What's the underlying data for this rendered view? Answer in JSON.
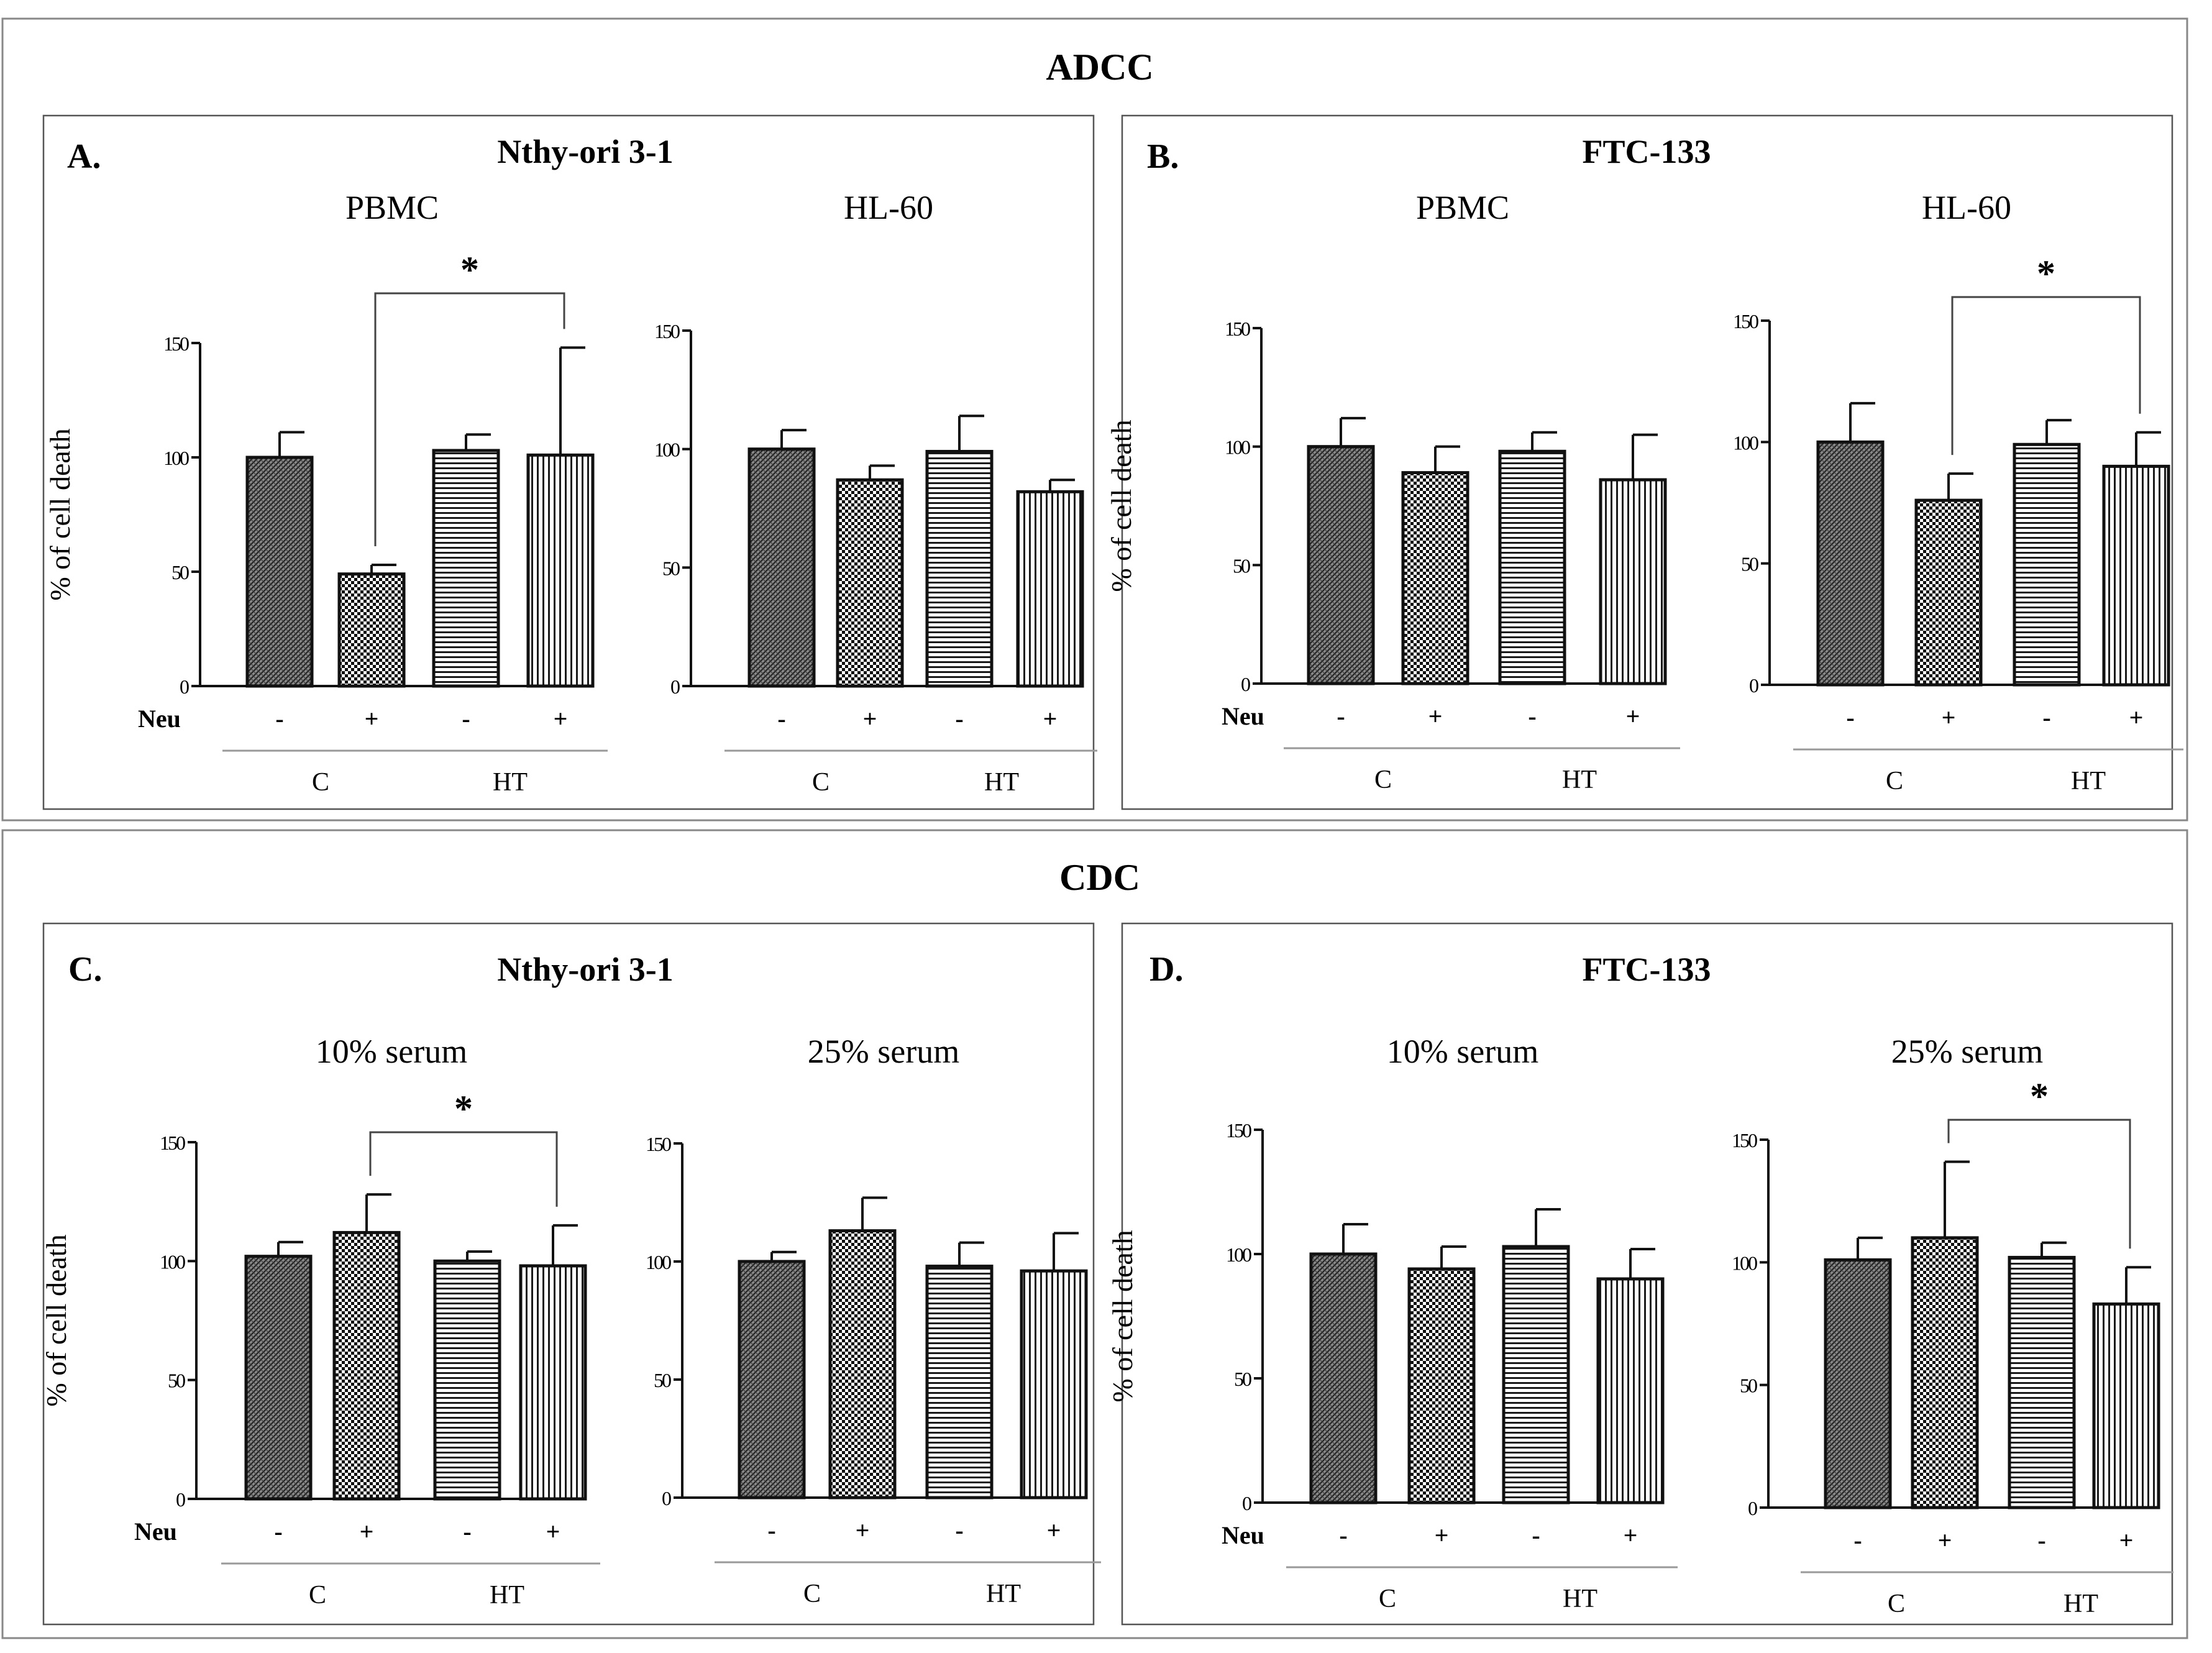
{
  "figure": {
    "sections": [
      {
        "id": "adcc",
        "title": "ADCC"
      },
      {
        "id": "cdc",
        "title": "CDC"
      }
    ],
    "panels": [
      {
        "id": "A",
        "label": "A.",
        "cell_line": "Nthy-ori 3-1"
      },
      {
        "id": "B",
        "label": "B.",
        "cell_line": "FTC-133"
      },
      {
        "id": "C",
        "label": "C.",
        "cell_line": "Nthy-ori 3-1"
      },
      {
        "id": "D",
        "label": "D.",
        "cell_line": "FTC-133"
      }
    ]
  },
  "chart_data": [
    {
      "type": "bar",
      "panel": "A",
      "title": "PBMC",
      "ylabel": "% of cell death",
      "ylim": [
        0,
        150
      ],
      "yticks": [
        0,
        50,
        100,
        150
      ],
      "neu_label": "Neu",
      "categories": [
        "-",
        "+",
        "-",
        "+"
      ],
      "groups": [
        "C",
        "HT"
      ],
      "values": [
        100,
        49,
        103,
        101
      ],
      "errors": [
        11,
        4,
        7,
        47
      ],
      "patterns": [
        "dense",
        "check",
        "hstripe",
        "vstripe"
      ],
      "significance": {
        "from": 1,
        "to": 3,
        "label": "*"
      }
    },
    {
      "type": "bar",
      "panel": "A",
      "title": "HL-60",
      "ylabel": "",
      "ylim": [
        0,
        150
      ],
      "yticks": [
        0,
        50,
        100,
        150
      ],
      "neu_label": "",
      "categories": [
        "-",
        "+",
        "-",
        "+"
      ],
      "groups": [
        "C",
        "HT"
      ],
      "values": [
        100,
        87,
        99,
        82
      ],
      "errors": [
        8,
        6,
        15,
        5
      ],
      "patterns": [
        "dense",
        "check",
        "hstripe",
        "vstripe"
      ],
      "significance": null
    },
    {
      "type": "bar",
      "panel": "B",
      "title": "PBMC",
      "ylabel": "% of cell death",
      "ylim": [
        0,
        150
      ],
      "yticks": [
        0,
        50,
        100,
        150
      ],
      "neu_label": "Neu",
      "categories": [
        "-",
        "+",
        "-",
        "+"
      ],
      "groups": [
        "C",
        "HT"
      ],
      "values": [
        100,
        89,
        98,
        86
      ],
      "errors": [
        12,
        11,
        8,
        19
      ],
      "patterns": [
        "dense",
        "check",
        "hstripe",
        "vstripe"
      ],
      "significance": null
    },
    {
      "type": "bar",
      "panel": "B",
      "title": "HL-60",
      "ylabel": "",
      "ylim": [
        0,
        150
      ],
      "yticks": [
        0,
        50,
        100,
        150
      ],
      "neu_label": "",
      "categories": [
        "-",
        "+",
        "-",
        "+"
      ],
      "groups": [
        "C",
        "HT"
      ],
      "values": [
        100,
        76,
        99,
        90
      ],
      "errors": [
        16,
        11,
        10,
        14
      ],
      "patterns": [
        "dense",
        "check",
        "hstripe",
        "vstripe"
      ],
      "significance": {
        "from": 1,
        "to": 3,
        "label": "*"
      }
    },
    {
      "type": "bar",
      "panel": "C",
      "title": "10% serum",
      "ylabel": "% of cell death",
      "ylim": [
        0,
        150
      ],
      "yticks": [
        0,
        50,
        100,
        150
      ],
      "neu_label": "Neu",
      "categories": [
        "-",
        "+",
        "-",
        "+"
      ],
      "groups": [
        "C",
        "HT"
      ],
      "values": [
        102,
        112,
        100,
        98
      ],
      "errors": [
        6,
        16,
        4,
        17
      ],
      "patterns": [
        "dense",
        "check",
        "hstripe",
        "vstripe"
      ],
      "significance": {
        "from": 1,
        "to": 3,
        "label": "*"
      }
    },
    {
      "type": "bar",
      "panel": "C",
      "title": "25% serum",
      "ylabel": "",
      "ylim": [
        0,
        150
      ],
      "yticks": [
        0,
        50,
        100,
        150
      ],
      "neu_label": "",
      "categories": [
        "-",
        "+",
        "-",
        "+"
      ],
      "groups": [
        "C",
        "HT"
      ],
      "values": [
        100,
        113,
        98,
        96
      ],
      "errors": [
        4,
        14,
        10,
        16
      ],
      "patterns": [
        "dense",
        "check",
        "hstripe",
        "vstripe"
      ],
      "significance": null
    },
    {
      "type": "bar",
      "panel": "D",
      "title": "10% serum",
      "ylabel": "% of cell death",
      "ylim": [
        0,
        150
      ],
      "yticks": [
        0,
        50,
        100,
        150
      ],
      "neu_label": "Neu",
      "categories": [
        "-",
        "+",
        "-",
        "+"
      ],
      "groups": [
        "C",
        "HT"
      ],
      "values": [
        100,
        94,
        103,
        90
      ],
      "errors": [
        12,
        9,
        15,
        12
      ],
      "patterns": [
        "dense",
        "check",
        "hstripe",
        "vstripe"
      ],
      "significance": null
    },
    {
      "type": "bar",
      "panel": "D",
      "title": "25% serum",
      "ylabel": "",
      "ylim": [
        0,
        150
      ],
      "yticks": [
        0,
        50,
        100,
        150
      ],
      "neu_label": "",
      "categories": [
        "-",
        "+",
        "-",
        "+"
      ],
      "groups": [
        "C",
        "HT"
      ],
      "values": [
        101,
        110,
        102,
        83
      ],
      "errors": [
        9,
        31,
        6,
        15
      ],
      "patterns": [
        "dense",
        "check",
        "hstripe",
        "vstripe"
      ],
      "significance": {
        "from": 1,
        "to": 3,
        "label": "*"
      }
    }
  ]
}
